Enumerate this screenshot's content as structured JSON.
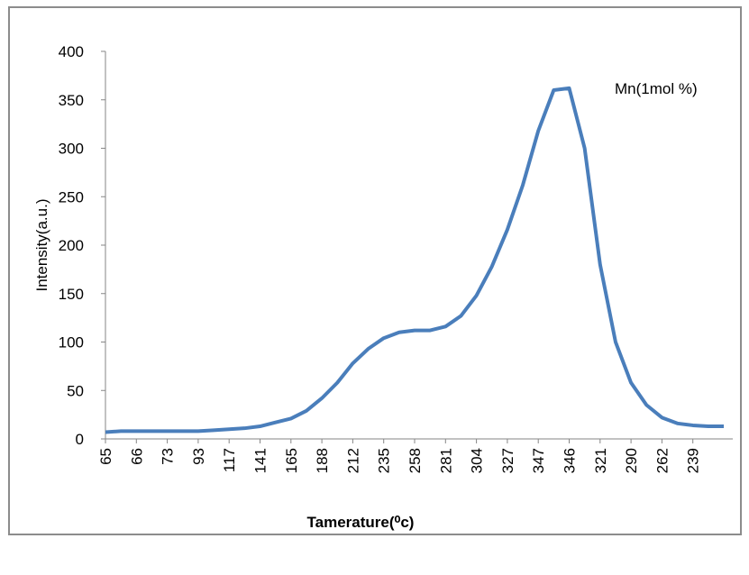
{
  "chart_data": {
    "type": "line",
    "x_label": "Tamerature(⁰c)",
    "y_label": "Intensity(a.u.)",
    "categories": [
      "65",
      null,
      "66",
      null,
      "73",
      null,
      "93",
      null,
      "117",
      null,
      "141",
      null,
      "165",
      null,
      "188",
      null,
      "212",
      null,
      "235",
      null,
      "258",
      null,
      "281",
      null,
      "304",
      null,
      "327",
      null,
      "347",
      null,
      "346",
      null,
      "321",
      null,
      "290",
      null,
      "262",
      null,
      "239",
      null,
      null
    ],
    "series": [
      {
        "name": "Mn(1mol %)",
        "color": "#4a7ebb",
        "values": [
          7,
          8,
          8,
          8,
          8,
          8,
          8,
          9,
          10,
          11,
          13,
          17,
          21,
          29,
          42,
          58,
          78,
          93,
          104,
          110,
          112,
          112,
          116,
          127,
          148,
          178,
          216,
          262,
          318,
          360,
          362,
          300,
          180,
          100,
          58,
          35,
          22,
          16,
          14,
          13,
          13
        ]
      }
    ],
    "ylim": [
      0,
      400
    ],
    "yticks": [
      0,
      50,
      100,
      150,
      200,
      250,
      300,
      350,
      400
    ],
    "grid": false
  }
}
